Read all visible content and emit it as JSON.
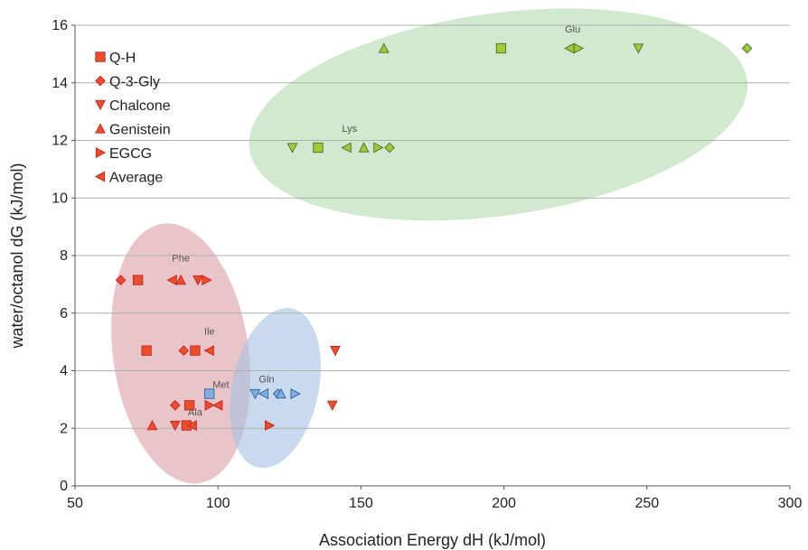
{
  "chart_data": {
    "type": "scatter",
    "xlabel": "Association Energy dH (kJ/mol)",
    "ylabel": "water/octanol dG (kJ/mol)",
    "xlim": [
      50,
      300
    ],
    "ylim": [
      0,
      16
    ],
    "xticks": [
      "50",
      "100",
      "150",
      "200",
      "250",
      "300"
    ],
    "yticks": [
      "0",
      "2",
      "4",
      "6",
      "8",
      "10",
      "12",
      "14",
      "16"
    ],
    "grid": "horizontal",
    "legend_position": "top-left",
    "colors": {
      "red": "#e8502a",
      "green": "#9ccc3a",
      "blue": "#7fb0e0",
      "dark_red": "#c8202a",
      "dark_green": "#4a6a2a",
      "dark_blue": "#2f5f9f",
      "ellipse_red": "#dca0a8",
      "ellipse_green": "#b4dcb0",
      "ellipse_blue": "#a8c4e4",
      "grid": "#b0b0b0"
    },
    "series": [
      {
        "name": "Q-H",
        "marker": "square-icon",
        "points": [
          [
            72,
            7.15,
            "red"
          ],
          [
            75,
            4.7,
            "red"
          ],
          [
            90,
            2.8,
            "red"
          ],
          [
            89,
            2.1,
            "red"
          ],
          [
            92,
            4.7,
            "red"
          ],
          [
            97,
            3.2,
            "blue"
          ],
          [
            135,
            11.75,
            "green"
          ],
          [
            199,
            15.2,
            "green"
          ]
        ]
      },
      {
        "name": "Q-3-Gly",
        "marker": "diamond-icon",
        "points": [
          [
            66,
            7.15,
            "red"
          ],
          [
            85,
            2.8,
            "red"
          ],
          [
            88,
            4.7,
            "red"
          ],
          [
            121,
            3.2,
            "blue"
          ],
          [
            160,
            11.75,
            "green"
          ],
          [
            285,
            15.2,
            "green"
          ]
        ]
      },
      {
        "name": "Chalcone",
        "marker": "triangle-down-icon",
        "points": [
          [
            93,
            7.15,
            "red"
          ],
          [
            85,
            2.1,
            "red"
          ],
          [
            141,
            4.7,
            "red"
          ],
          [
            140,
            2.8,
            "red"
          ],
          [
            113,
            3.2,
            "blue"
          ],
          [
            126,
            11.75,
            "green"
          ],
          [
            247,
            15.2,
            "green"
          ]
        ]
      },
      {
        "name": "Genistein",
        "marker": "triangle-up-icon",
        "points": [
          [
            87,
            7.15,
            "red"
          ],
          [
            77,
            2.1,
            "red"
          ],
          [
            122,
            3.2,
            "blue"
          ],
          [
            151,
            11.75,
            "green"
          ],
          [
            158,
            15.2,
            "green"
          ]
        ]
      },
      {
        "name": "EGCG",
        "marker": "triangle-right-icon",
        "points": [
          [
            96,
            7.15,
            "red"
          ],
          [
            97,
            2.8,
            "red"
          ],
          [
            118,
            2.1,
            "red"
          ],
          [
            127,
            3.2,
            "blue"
          ],
          [
            156,
            11.75,
            "green"
          ],
          [
            226,
            15.2,
            "green"
          ]
        ]
      },
      {
        "name": "Average",
        "marker": "triangle-left-icon",
        "points": [
          [
            84,
            7.15,
            "red"
          ],
          [
            97,
            4.7,
            "red"
          ],
          [
            100,
            2.8,
            "red"
          ],
          [
            91,
            2.1,
            "red"
          ],
          [
            116,
            3.2,
            "blue"
          ],
          [
            145,
            11.75,
            "green"
          ],
          [
            223,
            15.2,
            "green"
          ]
        ]
      }
    ],
    "annotations": [
      {
        "text": "Phe",
        "x": 87,
        "y": 7.8
      },
      {
        "text": "Ile",
        "x": 97,
        "y": 5.25
      },
      {
        "text": "Met",
        "x": 101,
        "y": 3.4
      },
      {
        "text": "Ala",
        "x": 92,
        "y": 2.45
      },
      {
        "text": "Gln",
        "x": 117,
        "y": 3.6
      },
      {
        "text": "Lys",
        "x": 146,
        "y": 12.3
      },
      {
        "text": "Glu",
        "x": 224,
        "y": 15.75
      }
    ]
  }
}
